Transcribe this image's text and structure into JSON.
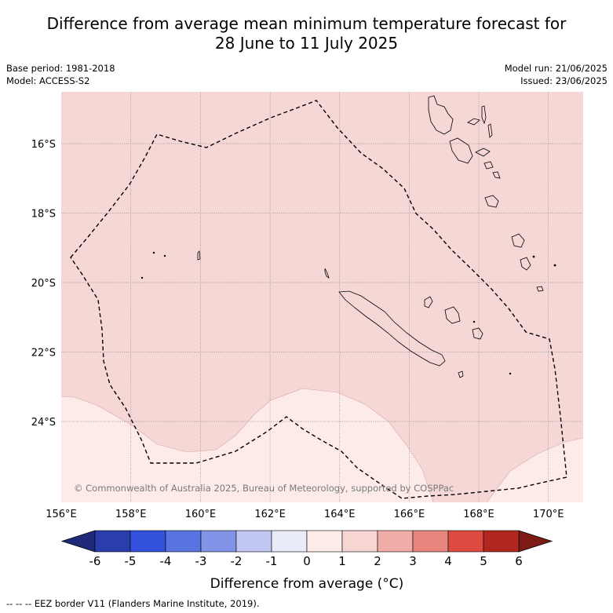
{
  "title_line1": "Difference from average mean minimum temperature forecast for",
  "title_line2": "28 June to 11 July 2025",
  "base_period": "Base period: 1981-2018",
  "model": "Model: ACCESS-S2",
  "model_run": "Model run: 21/06/2025",
  "issued": "Issued: 23/06/2025",
  "copyright": "© Commonwealth of Australia 2025, Bureau of Meteorology, supported by COSPPac",
  "lon_ticks": [
    "156°E",
    "158°E",
    "160°E",
    "162°E",
    "164°E",
    "166°E",
    "168°E",
    "170°E"
  ],
  "lat_ticks": [
    "16°S",
    "18°S",
    "20°S",
    "22°S",
    "24°S"
  ],
  "colorbar": {
    "ticks": [
      "-6",
      "-5",
      "-4",
      "-3",
      "-2",
      "-1",
      "0",
      "1",
      "2",
      "3",
      "4",
      "5",
      "6"
    ],
    "colors": [
      "#2a3dac",
      "#3451de",
      "#5874e0",
      "#8394e8",
      "#c2c7f3",
      "#e9ebf9",
      "#fdecea",
      "#f6d5d3",
      "#f0aca6",
      "#e8857d",
      "#dc4a40",
      "#b22620"
    ],
    "extend_low": "#1f2a7a",
    "extend_high": "#7d1a14",
    "label": "Difference from average (°C)"
  },
  "map_colors": {
    "dominant": "#f5d7d5",
    "light": "#fcebe9"
  },
  "footer": "--  --  -- EEZ border V11 (Flanders Marine Institute, 2019)."
}
